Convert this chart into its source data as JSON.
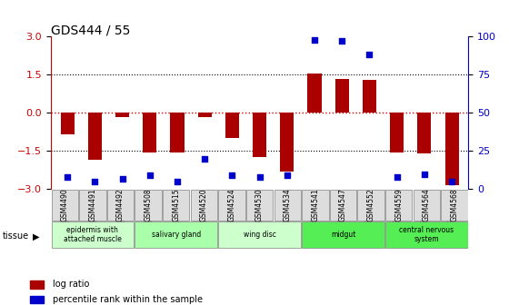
{
  "title": "GDS444 / 55",
  "samples": [
    "GSM4490",
    "GSM4491",
    "GSM4492",
    "GSM4508",
    "GSM4515",
    "GSM4520",
    "GSM4524",
    "GSM4530",
    "GSM4534",
    "GSM4541",
    "GSM4547",
    "GSM4552",
    "GSM4559",
    "GSM4564",
    "GSM4568"
  ],
  "log_ratio": [
    -0.85,
    -1.85,
    -0.15,
    -1.55,
    -1.55,
    -0.15,
    -1.0,
    -1.75,
    -2.3,
    1.55,
    1.35,
    1.3,
    -1.55,
    -1.6,
    -2.85
  ],
  "percentile": [
    8,
    5,
    7,
    9,
    5,
    20,
    9,
    8,
    9,
    98,
    97,
    88,
    8,
    10,
    5
  ],
  "ylim": [
    -3,
    3
  ],
  "yticks_left": [
    -3,
    -1.5,
    0,
    1.5,
    3
  ],
  "yticks_right": [
    0,
    25,
    50,
    75,
    100
  ],
  "bar_color": "#AA0000",
  "dot_color": "#0000CC",
  "hline_color": "#CC0000",
  "hline_style": "dotted",
  "grid_color": "#000000",
  "bg_color": "#ffffff",
  "tissue_groups": [
    {
      "label": "epidermis with\nattached muscle",
      "start": 0,
      "end": 3,
      "color": "#ccffcc"
    },
    {
      "label": "salivary gland",
      "start": 3,
      "end": 6,
      "color": "#aaffaa"
    },
    {
      "label": "wing disc",
      "start": 6,
      "end": 9,
      "color": "#ccffcc"
    },
    {
      "label": "midgut",
      "start": 9,
      "end": 12,
      "color": "#55ee55"
    },
    {
      "label": "central nervous\nsystem",
      "start": 12,
      "end": 15,
      "color": "#55ee55"
    }
  ],
  "legend_items": [
    {
      "label": "log ratio",
      "color": "#AA0000"
    },
    {
      "label": "percentile rank within the sample",
      "color": "#0000CC"
    }
  ]
}
